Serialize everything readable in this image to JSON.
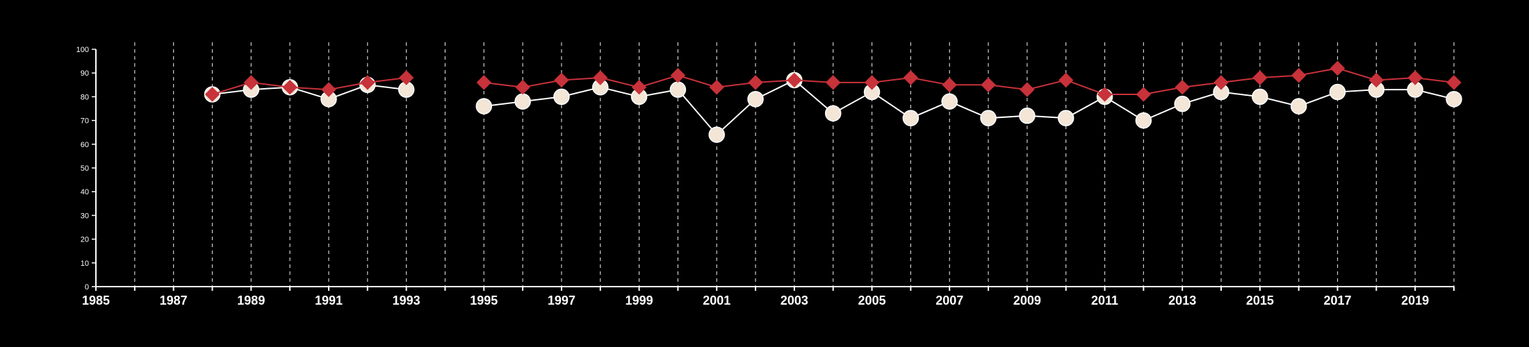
{
  "chart_data": {
    "type": "line",
    "title": "",
    "xlabel": "",
    "ylabel": "",
    "xlim": [
      1985,
      2020
    ],
    "ylim": [
      0,
      100
    ],
    "grid": "vertical dashed lines at each year",
    "legend": "none",
    "x_ticks": [
      "1985",
      "1987",
      "1989",
      "1991",
      "1993",
      "1995",
      "1997",
      "1999",
      "2001",
      "2003",
      "2005",
      "2007",
      "2009",
      "2011",
      "2013",
      "2015",
      "2017",
      "2019"
    ],
    "y_ticks": [
      "0",
      "10",
      "20",
      "30",
      "40",
      "50",
      "60",
      "70",
      "80",
      "90",
      "100"
    ],
    "x": [
      1988,
      1989,
      1990,
      1991,
      1992,
      1993,
      1994,
      1995,
      1996,
      1997,
      1998,
      1999,
      2000,
      2001,
      2002,
      2003,
      2004,
      2005,
      2006,
      2007,
      2008,
      2009,
      2010,
      2011,
      2012,
      2013,
      2014,
      2015,
      2016,
      2017,
      2018,
      2019,
      2020
    ],
    "series": [
      {
        "marker": "circle",
        "color": "#ffffff",
        "marker_fill": "#f3e6d7",
        "values": [
          81,
          83,
          84,
          79,
          85,
          83,
          null,
          76,
          78,
          80,
          84,
          80,
          83,
          64,
          79,
          87,
          73,
          82,
          71,
          78,
          71,
          72,
          71,
          80,
          70,
          77,
          82,
          80,
          76,
          82,
          83,
          83,
          79
        ]
      },
      {
        "marker": "diamond",
        "color": "#c8323a",
        "marker_fill": "#c8323a",
        "values": [
          81,
          86,
          84,
          83,
          86,
          88,
          null,
          86,
          84,
          87,
          88,
          84,
          89,
          84,
          86,
          87,
          86,
          86,
          88,
          85,
          85,
          83,
          87,
          81,
          81,
          84,
          86,
          88,
          89,
          92,
          87,
          88,
          86
        ]
      }
    ]
  }
}
